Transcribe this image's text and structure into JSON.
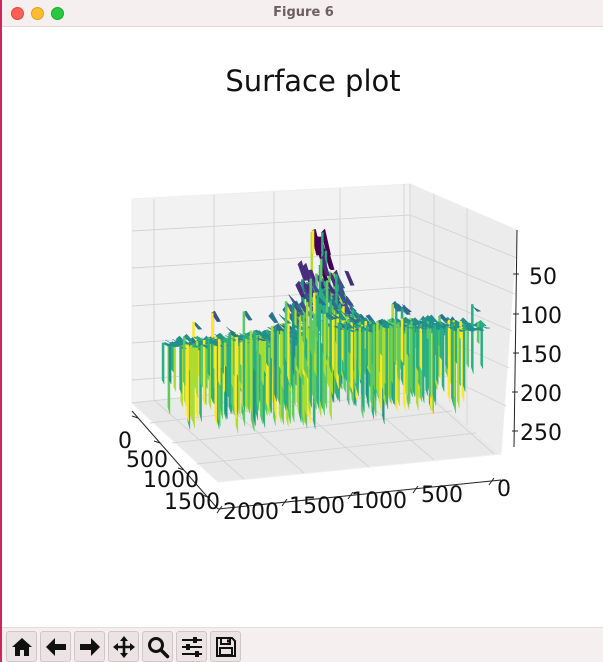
{
  "window": {
    "title": "Figure 6"
  },
  "toolbar": {
    "buttons": [
      {
        "name": "home-icon",
        "tooltip": "Home"
      },
      {
        "name": "back-arrow-icon",
        "tooltip": "Back"
      },
      {
        "name": "forward-arrow-icon",
        "tooltip": "Forward"
      },
      {
        "name": "pan-icon",
        "tooltip": "Pan"
      },
      {
        "name": "zoom-icon",
        "tooltip": "Zoom"
      },
      {
        "name": "configure-subplots-icon",
        "tooltip": "Configure subplots"
      },
      {
        "name": "save-icon",
        "tooltip": "Save"
      }
    ]
  },
  "chart_data": {
    "type": "surface3d",
    "title": "Surface plot",
    "colormap": "viridis",
    "x_ticks": [
      "0",
      "500",
      "1000",
      "1500",
      "2000"
    ],
    "y_ticks": [
      "0",
      "500",
      "1000",
      "1500"
    ],
    "z_ticks": [
      "50",
      "100",
      "150",
      "200",
      "250"
    ],
    "z_inverted": true,
    "grid": true
  }
}
